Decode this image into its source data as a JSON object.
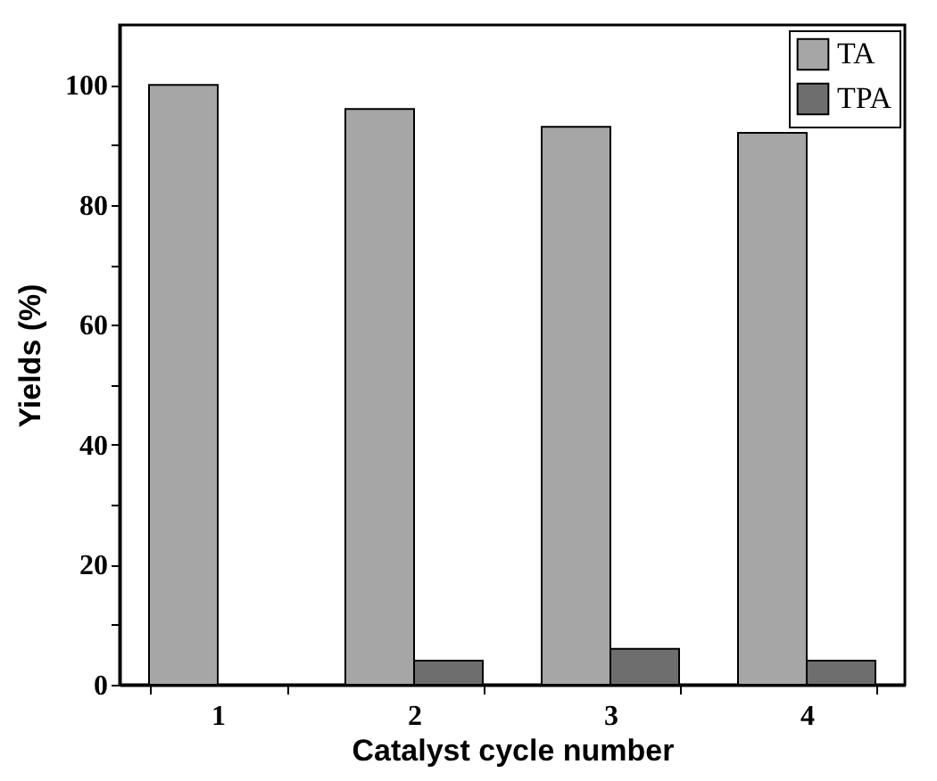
{
  "chart_data": {
    "type": "bar",
    "xlabel": "Catalyst cycle number",
    "ylabel": "Yields (%)",
    "categories": [
      "1",
      "2",
      "3",
      "4"
    ],
    "series": [
      {
        "name": "TA",
        "color": "#a6a6a6",
        "values": [
          100,
          96,
          93,
          92
        ]
      },
      {
        "name": "TPA",
        "color": "#6e6e6e",
        "values": [
          null,
          4,
          6,
          4
        ]
      }
    ],
    "ylim": [
      0,
      110
    ],
    "yticks": [
      0,
      {
        "value": 10,
        "label": null
      },
      20,
      {
        "value": 30,
        "label": null
      },
      40,
      {
        "value": 50,
        "label": null
      },
      60,
      {
        "value": 70,
        "label": null
      },
      80,
      {
        "value": 90,
        "label": null
      },
      100
    ],
    "grid": false,
    "legend": "top right"
  }
}
